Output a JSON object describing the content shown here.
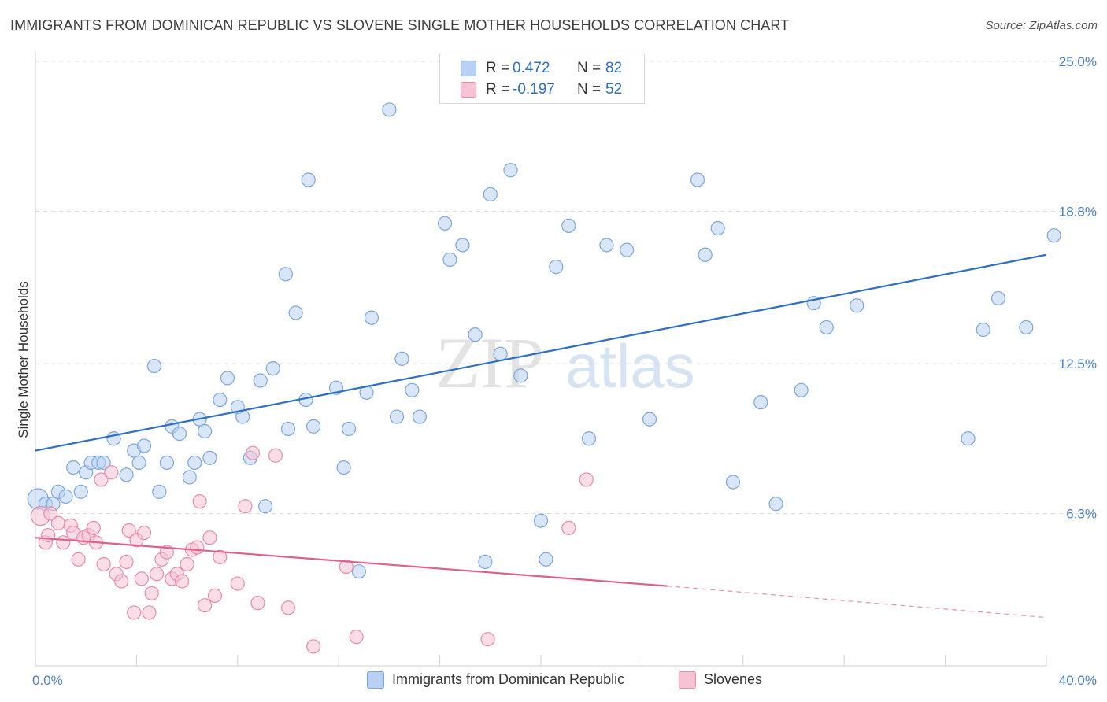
{
  "header": {
    "title": "IMMIGRANTS FROM DOMINICAN REPUBLIC VS SLOVENE SINGLE MOTHER HOUSEHOLDS CORRELATION CHART",
    "source": "Source: ZipAtlas.com"
  },
  "watermark": {
    "zip": "ZIP",
    "atlas": "atlas"
  },
  "legend": {
    "items": [
      {
        "r_label": "R =",
        "r_value": "0.472",
        "n_label": "N =",
        "n_value": "82"
      },
      {
        "r_label": "R =",
        "r_value": "-0.197",
        "n_label": "N =",
        "n_value": "52"
      }
    ]
  },
  "bottom_legend": {
    "series1": "Immigrants from Dominican Republic",
    "series2": "Slovenes"
  },
  "colors": {
    "blue_fill": "#b8d1f3",
    "blue_stroke": "#7ba6e0",
    "blue_line": "#2e6fc6",
    "pink_fill": "#f6c3d4",
    "pink_stroke": "#e98aab",
    "pink_line": "#e0608d",
    "grid": "#dcdcdc",
    "tick_text": "#4a7fc7"
  },
  "chart_data": {
    "type": "scatter",
    "title": "IMMIGRANTS FROM DOMINICAN REPUBLIC VS SLOVENE SINGLE MOTHER HOUSEHOLDS CORRELATION CHART",
    "xlabel": "",
    "ylabel": "Single Mother Households",
    "xlim": [
      0,
      40
    ],
    "ylim": [
      0,
      25
    ],
    "x_tick_labels": [
      "0.0%",
      "40.0%"
    ],
    "y_ticks": [
      6.3,
      12.5,
      18.8,
      25.0
    ],
    "y_tick_labels": [
      "6.3%",
      "12.5%",
      "18.8%",
      "25.0%"
    ],
    "grid": "horizontal dashed",
    "legend_placement": "top-center",
    "series": [
      {
        "name": "Immigrants from Dominican Republic",
        "R": 0.472,
        "N": 82,
        "trend": {
          "x": [
            0,
            40
          ],
          "y": [
            8.9,
            17.0
          ]
        },
        "points": [
          [
            0.1,
            6.9
          ],
          [
            0.4,
            6.7
          ],
          [
            0.7,
            6.7
          ],
          [
            0.9,
            7.2
          ],
          [
            1.2,
            7.0
          ],
          [
            1.5,
            8.2
          ],
          [
            1.8,
            7.2
          ],
          [
            2.0,
            8.0
          ],
          [
            2.2,
            8.4
          ],
          [
            2.5,
            8.4
          ],
          [
            2.7,
            8.4
          ],
          [
            3.1,
            9.4
          ],
          [
            3.6,
            7.9
          ],
          [
            3.9,
            8.9
          ],
          [
            4.1,
            8.4
          ],
          [
            4.3,
            9.1
          ],
          [
            4.7,
            12.4
          ],
          [
            4.9,
            7.2
          ],
          [
            5.2,
            8.4
          ],
          [
            5.4,
            9.9
          ],
          [
            5.7,
            9.6
          ],
          [
            6.1,
            7.8
          ],
          [
            6.3,
            8.4
          ],
          [
            6.5,
            10.2
          ],
          [
            6.7,
            9.7
          ],
          [
            6.9,
            8.6
          ],
          [
            7.6,
            11.9
          ],
          [
            7.3,
            11.0
          ],
          [
            8.0,
            10.7
          ],
          [
            8.2,
            10.3
          ],
          [
            8.5,
            8.6
          ],
          [
            8.9,
            11.8
          ],
          [
            9.1,
            6.6
          ],
          [
            9.4,
            12.3
          ],
          [
            9.9,
            16.2
          ],
          [
            10.0,
            9.8
          ],
          [
            10.3,
            14.6
          ],
          [
            10.7,
            11.0
          ],
          [
            10.8,
            20.1
          ],
          [
            11.0,
            9.9
          ],
          [
            11.9,
            11.5
          ],
          [
            12.2,
            8.2
          ],
          [
            12.4,
            9.8
          ],
          [
            12.8,
            3.9
          ],
          [
            13.1,
            11.3
          ],
          [
            13.3,
            14.4
          ],
          [
            14.0,
            23.0
          ],
          [
            14.3,
            10.3
          ],
          [
            14.5,
            12.7
          ],
          [
            14.9,
            11.4
          ],
          [
            15.2,
            10.3
          ],
          [
            16.2,
            18.3
          ],
          [
            16.4,
            16.8
          ],
          [
            16.9,
            17.4
          ],
          [
            17.4,
            13.7
          ],
          [
            17.8,
            4.3
          ],
          [
            18.0,
            19.5
          ],
          [
            18.4,
            12.9
          ],
          [
            18.8,
            20.5
          ],
          [
            19.2,
            12.0
          ],
          [
            20.0,
            6.0
          ],
          [
            20.2,
            4.4
          ],
          [
            20.6,
            16.5
          ],
          [
            21.1,
            18.2
          ],
          [
            21.9,
            9.4
          ],
          [
            22.6,
            17.4
          ],
          [
            23.4,
            17.2
          ],
          [
            24.3,
            10.2
          ],
          [
            26.2,
            20.1
          ],
          [
            26.5,
            17.0
          ],
          [
            27.0,
            18.1
          ],
          [
            27.6,
            7.6
          ],
          [
            28.7,
            10.9
          ],
          [
            29.3,
            6.7
          ],
          [
            30.3,
            11.4
          ],
          [
            30.8,
            15.0
          ],
          [
            31.3,
            14.0
          ],
          [
            32.5,
            14.9
          ],
          [
            36.9,
            9.4
          ],
          [
            37.5,
            13.9
          ],
          [
            38.1,
            15.2
          ],
          [
            39.2,
            14.0
          ],
          [
            40.3,
            17.8
          ]
        ]
      },
      {
        "name": "Slovenes",
        "R": -0.197,
        "N": 52,
        "trend": {
          "x": [
            0,
            25
          ],
          "y": [
            5.3,
            3.3
          ],
          "dashed_to": [
            40,
            2.0
          ]
        },
        "points": [
          [
            0.2,
            6.2
          ],
          [
            0.4,
            5.1
          ],
          [
            0.5,
            5.4
          ],
          [
            0.6,
            6.3
          ],
          [
            0.9,
            5.9
          ],
          [
            1.1,
            5.1
          ],
          [
            1.4,
            5.8
          ],
          [
            1.5,
            5.5
          ],
          [
            1.7,
            4.4
          ],
          [
            1.9,
            5.3
          ],
          [
            2.1,
            5.4
          ],
          [
            2.3,
            5.7
          ],
          [
            2.4,
            5.1
          ],
          [
            2.6,
            7.7
          ],
          [
            2.7,
            4.2
          ],
          [
            3.0,
            8.0
          ],
          [
            3.2,
            3.8
          ],
          [
            3.4,
            3.5
          ],
          [
            3.6,
            4.3
          ],
          [
            3.7,
            5.6
          ],
          [
            3.9,
            2.2
          ],
          [
            4.0,
            5.2
          ],
          [
            4.2,
            3.6
          ],
          [
            4.3,
            5.5
          ],
          [
            4.5,
            2.2
          ],
          [
            4.6,
            3.0
          ],
          [
            4.8,
            3.8
          ],
          [
            5.0,
            4.4
          ],
          [
            5.2,
            4.7
          ],
          [
            5.4,
            3.6
          ],
          [
            5.6,
            3.8
          ],
          [
            5.8,
            3.5
          ],
          [
            6.0,
            4.2
          ],
          [
            6.2,
            4.8
          ],
          [
            6.4,
            4.9
          ],
          [
            6.5,
            6.8
          ],
          [
            6.7,
            2.5
          ],
          [
            6.9,
            5.3
          ],
          [
            7.1,
            2.9
          ],
          [
            7.3,
            4.5
          ],
          [
            8.0,
            3.4
          ],
          [
            8.3,
            6.6
          ],
          [
            8.6,
            8.8
          ],
          [
            8.8,
            2.6
          ],
          [
            9.5,
            8.7
          ],
          [
            10.0,
            2.4
          ],
          [
            11.0,
            0.8
          ],
          [
            12.3,
            4.1
          ],
          [
            12.7,
            1.2
          ],
          [
            17.9,
            1.1
          ],
          [
            21.1,
            5.7
          ],
          [
            21.8,
            7.7
          ]
        ]
      }
    ]
  }
}
